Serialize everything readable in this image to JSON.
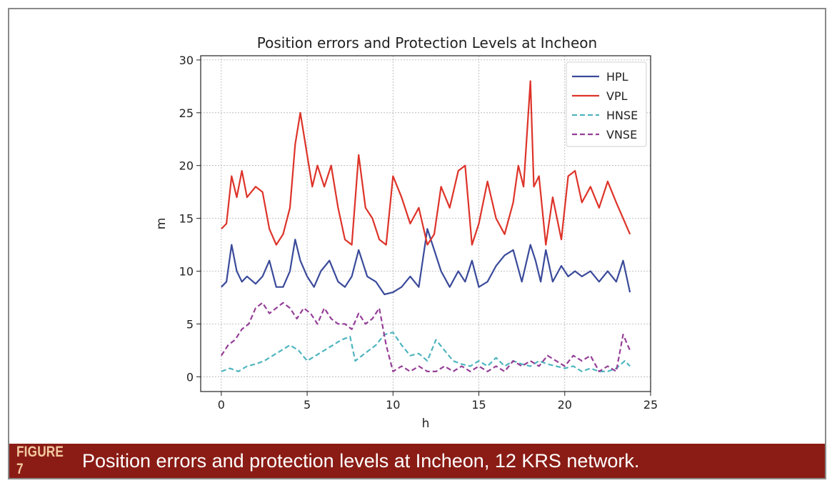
{
  "chart_data": {
    "type": "line",
    "title": "Position errors and Protection Levels at Incheon",
    "xlabel": "h",
    "ylabel": "m",
    "xlim": [
      -1.2,
      25
    ],
    "ylim": [
      -1.4,
      30.4
    ],
    "xticks": [
      0,
      5,
      10,
      15,
      20,
      25
    ],
    "yticks": [
      0,
      5,
      10,
      15,
      20,
      25,
      30
    ],
    "grid": true,
    "legend_position": "top-right",
    "series": [
      {
        "name": "HPL",
        "color": "#3a4a9a",
        "dash": "solid",
        "x": [
          0,
          0.3,
          0.6,
          0.9,
          1.2,
          1.5,
          2,
          2.4,
          2.8,
          3.2,
          3.6,
          4,
          4.3,
          4.6,
          5,
          5.4,
          5.8,
          6.3,
          6.8,
          7.2,
          7.6,
          8,
          8.5,
          9,
          9.5,
          10,
          10.5,
          11,
          11.5,
          12,
          12.4,
          12.8,
          13.3,
          13.8,
          14.2,
          14.6,
          15,
          15.5,
          16,
          16.5,
          17,
          17.5,
          18,
          18.3,
          18.6,
          18.9,
          19.3,
          19.8,
          20.2,
          20.6,
          21,
          21.5,
          22,
          22.5,
          23,
          23.4,
          23.8
        ],
        "y": [
          8.5,
          9,
          12.5,
          10,
          9,
          9.5,
          8.8,
          9.5,
          11,
          8.5,
          8.5,
          10,
          13,
          11,
          9.5,
          8.5,
          10,
          11,
          9,
          8.5,
          9.5,
          12,
          9.5,
          9,
          7.8,
          8,
          8.5,
          9.5,
          8.5,
          14,
          12,
          10,
          8.5,
          10,
          9,
          11,
          8.5,
          9,
          10.5,
          11.5,
          12,
          9,
          12.5,
          11,
          9,
          12,
          9,
          10.5,
          9.5,
          10,
          9.5,
          10,
          9,
          10,
          9,
          11,
          8
        ]
      },
      {
        "name": "VPL",
        "color": "#dd3329",
        "dash": "solid",
        "x": [
          0,
          0.3,
          0.6,
          0.9,
          1.2,
          1.5,
          2,
          2.4,
          2.8,
          3.2,
          3.6,
          4,
          4.3,
          4.6,
          5,
          5.3,
          5.6,
          6,
          6.4,
          6.8,
          7.2,
          7.6,
          8,
          8.4,
          8.8,
          9.2,
          9.6,
          10,
          10.5,
          11,
          11.5,
          12,
          12.4,
          12.8,
          13.3,
          13.8,
          14.2,
          14.6,
          15,
          15.5,
          16,
          16.5,
          17,
          17.3,
          17.6,
          18,
          18.2,
          18.5,
          18.9,
          19.3,
          19.8,
          20.2,
          20.6,
          21,
          21.5,
          22,
          22.5,
          23,
          23.4,
          23.8
        ],
        "y": [
          14,
          14.5,
          19,
          17,
          19.5,
          17,
          18,
          17.5,
          14,
          12.5,
          13.5,
          16,
          22,
          25,
          21,
          18,
          20,
          18,
          20,
          16,
          13,
          12.5,
          21,
          16,
          15,
          13,
          12.5,
          19,
          17,
          14.5,
          16,
          12.5,
          13.5,
          18,
          16,
          19.5,
          20,
          12.5,
          14.5,
          18.5,
          15,
          13.5,
          16.5,
          20,
          18,
          28,
          18,
          19,
          12.5,
          17,
          13,
          19,
          19.5,
          16.5,
          18,
          16,
          18.5,
          16.5,
          15,
          13.5
        ]
      },
      {
        "name": "HNSE",
        "color": "#4fb5bf",
        "dash": "dashed",
        "x": [
          0,
          0.5,
          1,
          1.5,
          2,
          2.5,
          3,
          3.5,
          4,
          4.5,
          5,
          5.5,
          6,
          6.5,
          7,
          7.5,
          7.8,
          8.2,
          8.6,
          9,
          9.5,
          10,
          10.5,
          11,
          11.5,
          12,
          12.5,
          13,
          13.5,
          14,
          14.5,
          15,
          15.5,
          16,
          16.5,
          17,
          17.5,
          18,
          18.5,
          19,
          19.5,
          20,
          20.5,
          21,
          21.5,
          22,
          22.5,
          23,
          23.5,
          23.8
        ],
        "y": [
          0.5,
          0.8,
          0.5,
          1,
          1.2,
          1.5,
          2,
          2.5,
          3,
          2.5,
          1.5,
          2,
          2.5,
          3,
          3.5,
          3.8,
          1.5,
          2,
          2.5,
          3,
          4,
          4.2,
          3,
          2,
          2.2,
          1.5,
          3.5,
          2.5,
          1.5,
          1.2,
          1,
          1.5,
          1,
          1.8,
          1,
          1.5,
          1.2,
          1,
          1.5,
          1.2,
          1,
          0.8,
          1,
          0.5,
          0.8,
          0.5,
          0.5,
          0.8,
          1.5,
          1
        ]
      },
      {
        "name": "VNSE",
        "color": "#953f97",
        "dash": "dashed",
        "x": [
          0,
          0.4,
          0.8,
          1.2,
          1.6,
          2,
          2.4,
          2.8,
          3.2,
          3.6,
          4,
          4.4,
          4.8,
          5.2,
          5.6,
          6,
          6.4,
          6.8,
          7.2,
          7.6,
          8,
          8.4,
          8.8,
          9.2,
          9.6,
          10,
          10.5,
          11,
          11.5,
          12,
          12.5,
          13,
          13.5,
          14,
          14.5,
          15,
          15.5,
          16,
          16.5,
          17,
          17.5,
          18,
          18.5,
          19,
          19.5,
          20,
          20.5,
          21,
          21.5,
          22,
          22.5,
          23,
          23.4,
          23.8
        ],
        "y": [
          2,
          3,
          3.5,
          4.5,
          5,
          6.5,
          7,
          6,
          6.5,
          7,
          6.5,
          5.5,
          6.5,
          6,
          5,
          6.5,
          5.5,
          5,
          5,
          4.5,
          6,
          5,
          5.5,
          6.5,
          3,
          0.5,
          1,
          0.5,
          1,
          0.5,
          0.5,
          1,
          0.5,
          1,
          0.5,
          1,
          0.5,
          1,
          0.5,
          1.5,
          1,
          1.5,
          1,
          2,
          1.5,
          1,
          2,
          1.5,
          2,
          0.5,
          1,
          0.5,
          4,
          2.5
        ]
      }
    ]
  },
  "caption": {
    "label": "FIGURE 7",
    "text": "Position errors and protection levels at Incheon, 12 KRS network."
  }
}
